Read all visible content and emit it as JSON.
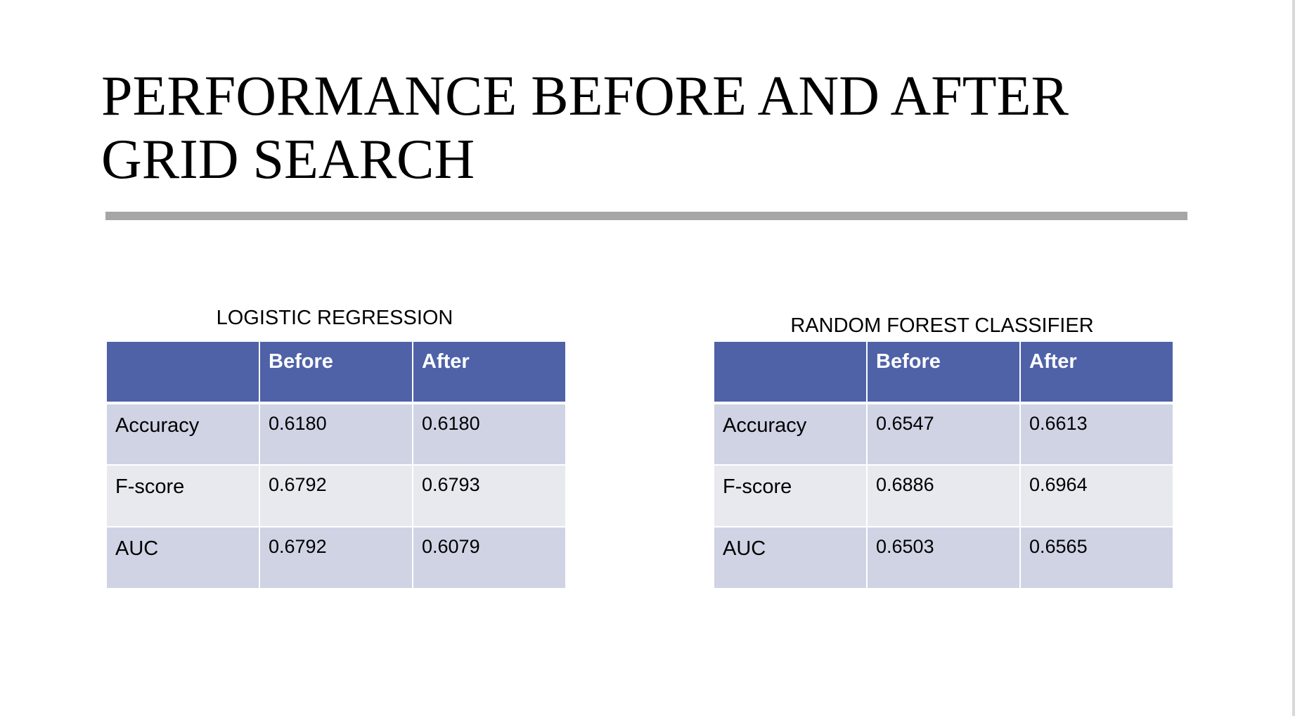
{
  "slide": {
    "title_line_1": "PERFORMANCE BEFORE AND AFTER",
    "title_line_2": "GRID SEARCH"
  },
  "tables": [
    {
      "caption": "LOGISTIC REGRESSION",
      "columns": [
        "",
        "Before",
        "After"
      ],
      "rows": [
        {
          "metric": "Accuracy",
          "before": "0.6180",
          "after": "0.6180"
        },
        {
          "metric": "F-score",
          "before": "0.6792",
          "after": "0.6793"
        },
        {
          "metric": "AUC",
          "before": "0.6792",
          "after": "0.6079"
        }
      ]
    },
    {
      "caption": "RANDOM FOREST CLASSIFIER",
      "columns": [
        "",
        "Before",
        "After"
      ],
      "rows": [
        {
          "metric": "Accuracy",
          "before": "0.6547",
          "after": "0.6613"
        },
        {
          "metric": "F-score",
          "before": "0.6886",
          "after": "0.6964"
        },
        {
          "metric": "AUC",
          "before": "0.6503",
          "after": "0.6565"
        }
      ]
    }
  ],
  "colors": {
    "header_fill": "#4f62a8",
    "row_odd_fill": "#cfd3e4",
    "row_even_fill": "#e8e9ef",
    "title_rule": "#a6a6a6"
  }
}
